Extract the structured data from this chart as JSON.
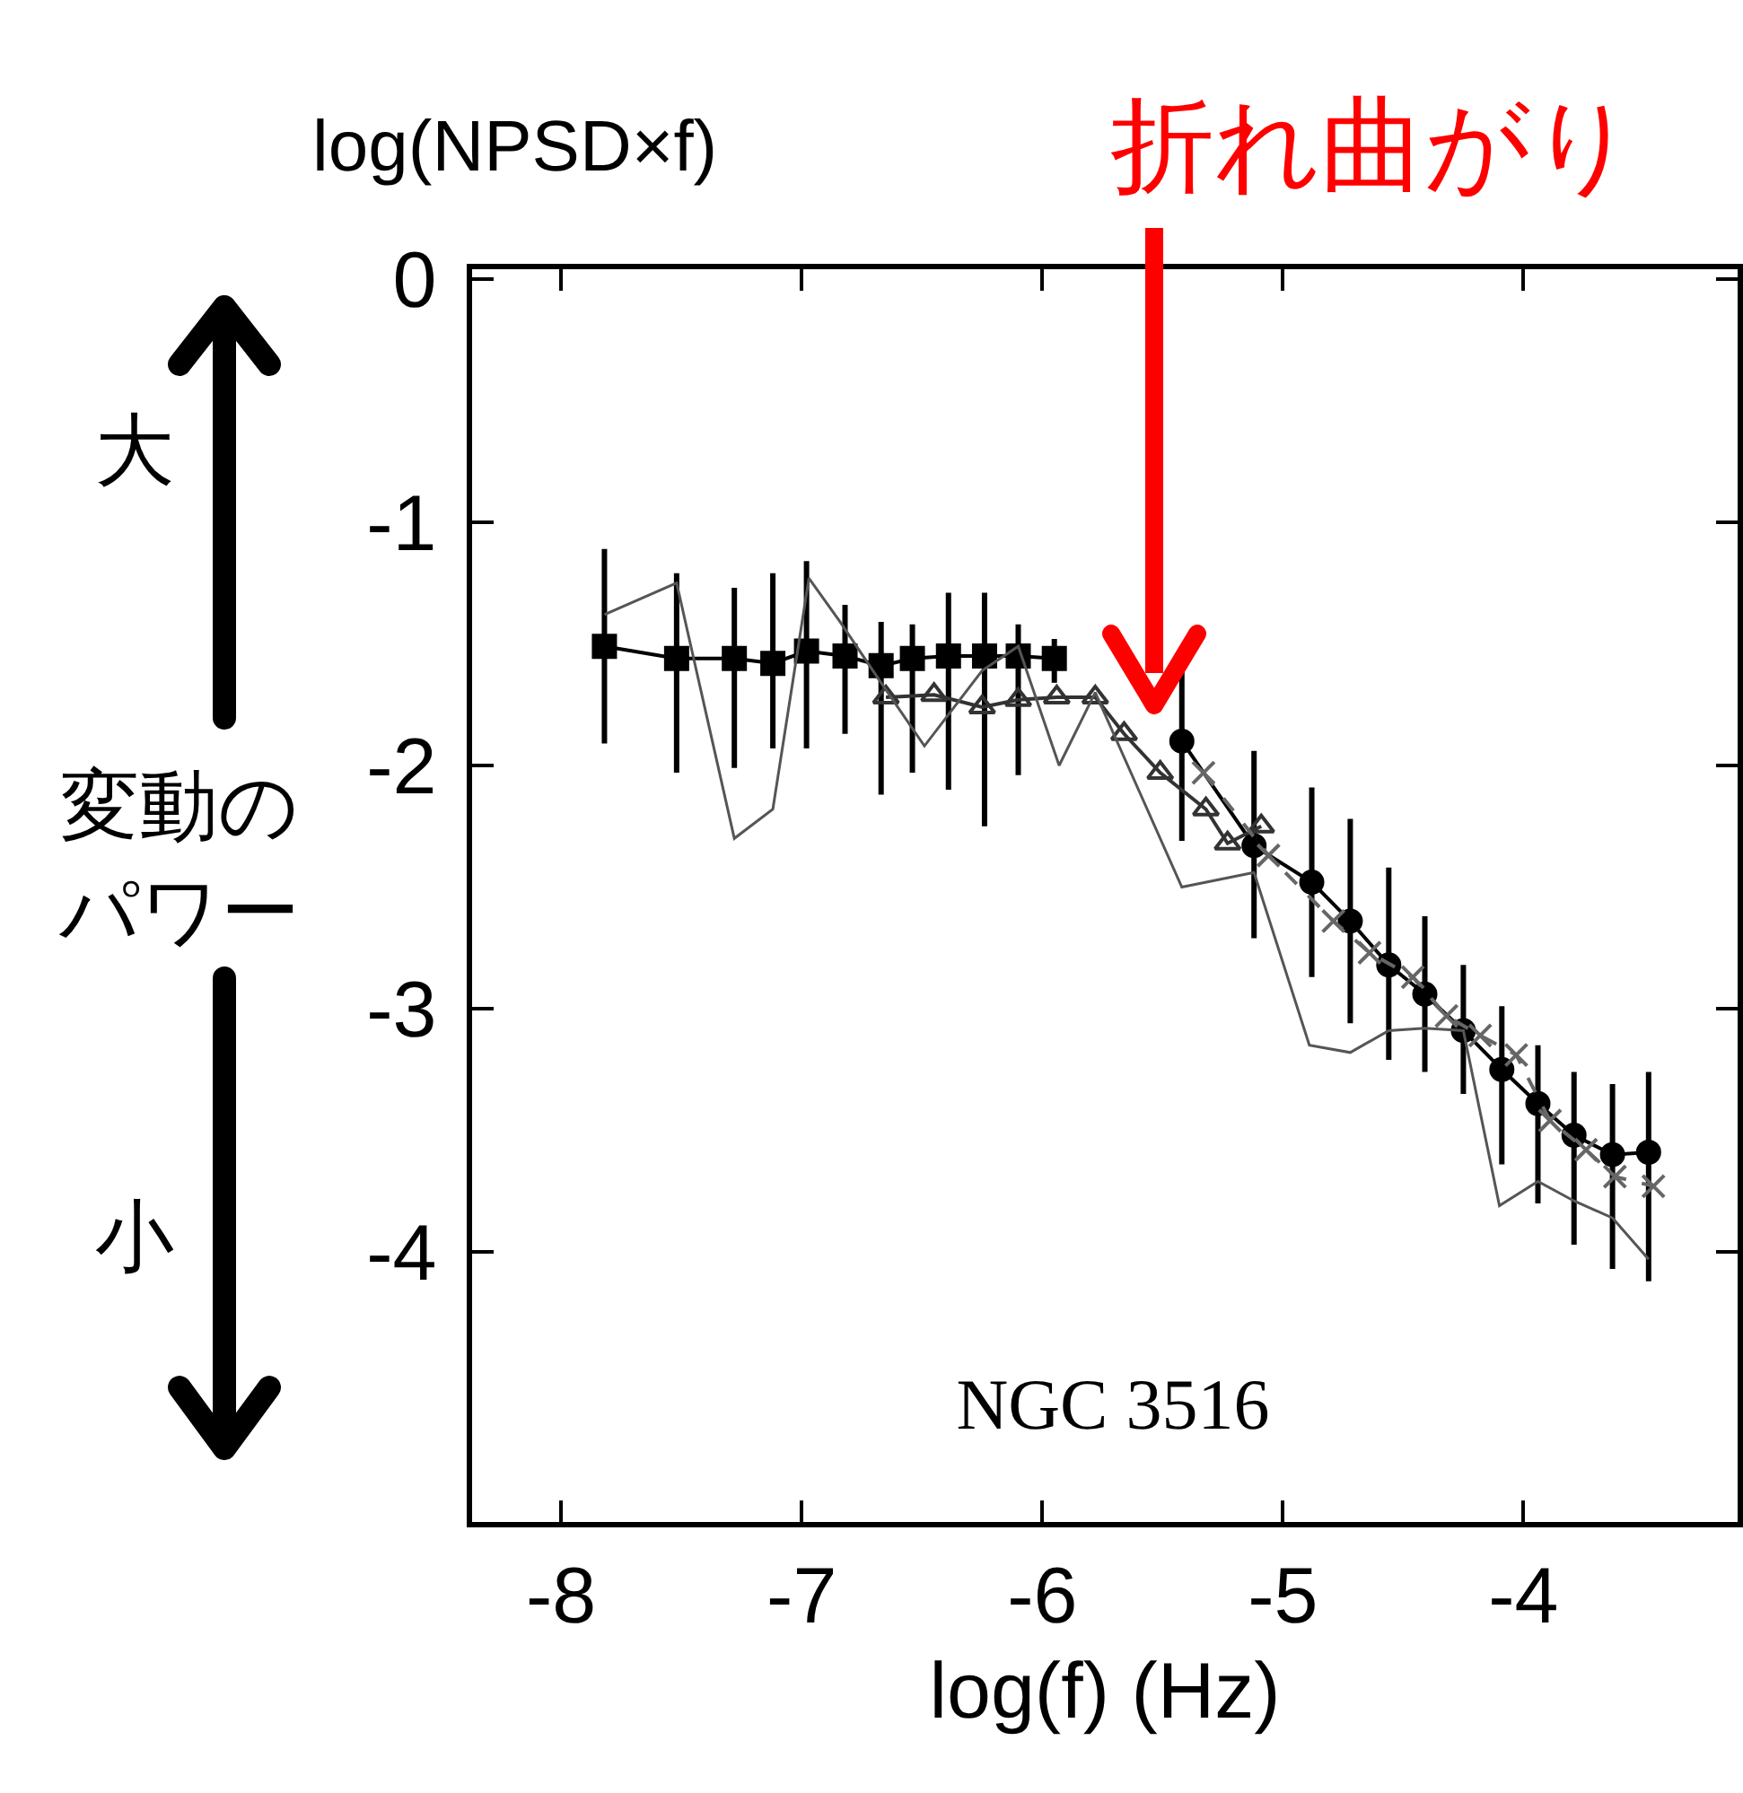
{
  "chart_data": {
    "type": "line",
    "xlabel": "log(f) (Hz)",
    "ylabel": "log(NPSD×f)",
    "xlim": [
      -8.37,
      -3.11
    ],
    "ylim": [
      -5.11,
      0.04
    ],
    "xticks": [
      -8,
      -7,
      -6,
      -5,
      -4
    ],
    "yticks": [
      0,
      -1,
      -2,
      -3,
      -4
    ],
    "grid": false,
    "series": [
      {
        "color": "#000000",
        "marker": "square",
        "line_style": "solid",
        "x": [
          -7.82,
          -7.52,
          -7.28,
          -7.12,
          -6.98,
          -6.82,
          -6.67,
          -6.54,
          -6.39,
          -6.24,
          -6.1,
          -5.95
        ],
        "values": [
          -1.51,
          -1.56,
          -1.56,
          -1.58,
          -1.53,
          -1.55,
          -1.59,
          -1.56,
          -1.55,
          -1.55,
          -1.55,
          -1.56
        ],
        "errors": [
          [
            -1.91,
            -1.11
          ],
          [
            -2.03,
            -1.21
          ],
          [
            -2.01,
            -1.27
          ],
          [
            -1.93,
            -1.21
          ],
          [
            -1.93,
            -1.16
          ],
          [
            -1.87,
            -1.34
          ],
          [
            -2.12,
            -1.41
          ],
          [
            -2.03,
            -1.42
          ],
          [
            -2.1,
            -1.29
          ],
          [
            -2.25,
            -1.29
          ],
          [
            -2.04,
            -1.42
          ],
          [
            -1.66,
            -1.48
          ]
        ]
      },
      {
        "color": "#000000",
        "marker": "circle",
        "line_style": "solid",
        "x": [
          -5.42,
          -5.12,
          -4.88,
          -4.72,
          -4.56,
          -4.41,
          -4.25,
          -4.09,
          -3.94,
          -3.79,
          -3.63,
          -3.48
        ],
        "values": [
          -1.9,
          -2.33,
          -2.48,
          -2.64,
          -2.82,
          -2.94,
          -3.09,
          -3.25,
          -3.39,
          -3.52,
          -3.6,
          -3.59
        ],
        "errors": [
          [
            -2.31,
            -1.61
          ],
          [
            -2.71,
            -1.94
          ],
          [
            -2.87,
            -2.09
          ],
          [
            -3.06,
            -2.22
          ],
          [
            -3.21,
            -2.42
          ],
          [
            -3.26,
            -2.62
          ],
          [
            -3.35,
            -2.82
          ],
          [
            -3.64,
            -2.99
          ],
          [
            -3.8,
            -3.15
          ],
          [
            -3.97,
            -3.26
          ],
          [
            -4.07,
            -3.31
          ],
          [
            -4.12,
            -3.26
          ]
        ]
      },
      {
        "color": "#333333",
        "marker": "triangle",
        "line_style": "solid",
        "x": [
          -6.65,
          -6.45,
          -6.25,
          -6.1,
          -5.94,
          -5.78,
          -5.66,
          -5.51,
          -5.32,
          -5.23,
          -5.09
        ],
        "values": [
          -1.72,
          -1.71,
          -1.76,
          -1.73,
          -1.72,
          -1.72,
          -1.87,
          -2.03,
          -2.18,
          -2.32,
          -2.25
        ]
      },
      {
        "color": "#666666",
        "marker": "cross",
        "line_style": "dashed",
        "x": [
          -5.33,
          -5.06,
          -4.79,
          -4.64,
          -4.46,
          -4.32,
          -4.18,
          -4.03,
          -3.89,
          -3.74,
          -3.62,
          -3.46
        ],
        "values": [
          -2.03,
          -2.37,
          -2.64,
          -2.77,
          -2.87,
          -3.03,
          -3.11,
          -3.19,
          -3.46,
          -3.58,
          -3.69,
          -3.73
        ]
      },
      {
        "color": "#555555",
        "marker": "none",
        "line_style": "solid",
        "x": [
          -7.82,
          -7.52,
          -7.28,
          -7.12,
          -6.97,
          -6.84,
          -6.67,
          -6.49,
          -6.25,
          -6.1,
          -5.93,
          -5.78,
          -5.42,
          -5.12,
          -4.89,
          -4.72,
          -4.56,
          -4.41,
          -4.25,
          -4.1,
          -3.94,
          -3.79,
          -3.63,
          -3.48
        ],
        "values": [
          -1.38,
          -1.25,
          -2.3,
          -2.18,
          -1.23,
          -1.41,
          -1.66,
          -1.92,
          -1.61,
          -1.51,
          -2.0,
          -1.7,
          -2.5,
          -2.44,
          -3.15,
          -3.18,
          -3.09,
          -3.08,
          -3.09,
          -3.81,
          -3.71,
          -3.79,
          -3.86,
          -4.03
        ]
      }
    ],
    "annotations": [
      "折れ曲がり",
      "大",
      "変動のパワー",
      "小",
      "NGC 3516"
    ]
  }
}
